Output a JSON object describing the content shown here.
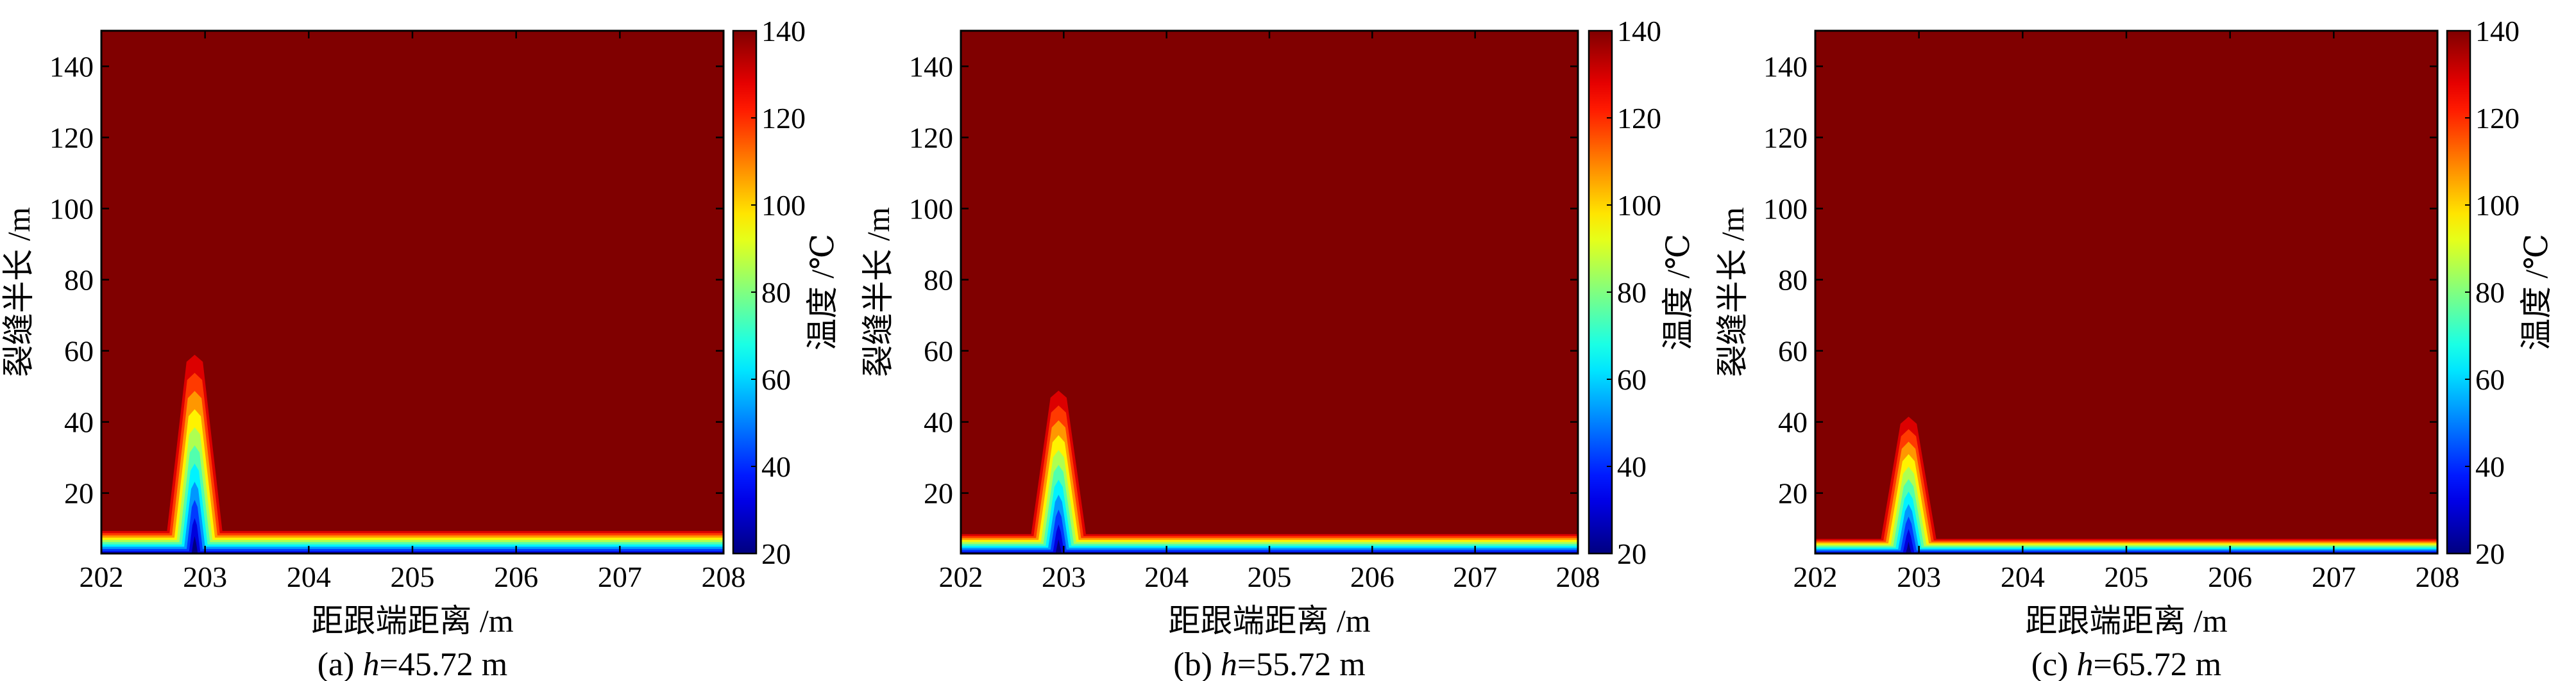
{
  "chart_data": [
    {
      "type": "heatmap",
      "caption": {
        "prefix": "(a) ",
        "var": "h",
        "suffix": "=45.72 m"
      },
      "xlabel": "距跟端距离 /m",
      "ylabel": "裂缝半长 /m",
      "colorbar_label": "温度 /℃",
      "xlim": [
        202,
        208
      ],
      "ylim": [
        3,
        150
      ],
      "xticks": [
        "202",
        "203",
        "204",
        "205",
        "206",
        "207",
        "208"
      ],
      "yticks": [
        "20",
        "40",
        "60",
        "80",
        "100",
        "120",
        "140"
      ],
      "clim": [
        20,
        140
      ],
      "cticks": [
        "20",
        "40",
        "60",
        "80",
        "100",
        "120",
        "140"
      ],
      "background_temperature": 140,
      "band_top_y": 10,
      "peak": {
        "x": 202.9,
        "y_max": 64,
        "temperature_min": 20
      }
    },
    {
      "type": "heatmap",
      "caption": {
        "prefix": "(b) ",
        "var": "h",
        "suffix": "=55.72 m"
      },
      "xlabel": "距跟端距离 /m",
      "ylabel": "裂缝半长 /m",
      "colorbar_label": "温度 /℃",
      "xlim": [
        202,
        208
      ],
      "ylim": [
        3,
        150
      ],
      "xticks": [
        "202",
        "203",
        "204",
        "205",
        "206",
        "207",
        "208"
      ],
      "yticks": [
        "20",
        "40",
        "60",
        "80",
        "100",
        "120",
        "140"
      ],
      "clim": [
        20,
        140
      ],
      "cticks": [
        "20",
        "40",
        "60",
        "80",
        "100",
        "120",
        "140"
      ],
      "background_temperature": 140,
      "band_top_y": 9,
      "peak": {
        "x": 202.95,
        "y_max": 53,
        "temperature_min": 20
      }
    },
    {
      "type": "heatmap",
      "caption": {
        "prefix": "(c) ",
        "var": "h",
        "suffix": "=65.72 m"
      },
      "xlabel": "距跟端距离 /m",
      "ylabel": "裂缝半长 /m",
      "colorbar_label": "温度 /℃",
      "xlim": [
        202,
        208
      ],
      "ylim": [
        3,
        150
      ],
      "xticks": [
        "202",
        "203",
        "204",
        "205",
        "206",
        "207",
        "208"
      ],
      "yticks": [
        "20",
        "40",
        "60",
        "80",
        "100",
        "120",
        "140"
      ],
      "clim": [
        20,
        140
      ],
      "cticks": [
        "20",
        "40",
        "60",
        "80",
        "100",
        "120",
        "140"
      ],
      "background_temperature": 140,
      "band_top_y": 7.5,
      "peak": {
        "x": 202.9,
        "y_max": 45,
        "temperature_min": 20
      }
    }
  ]
}
